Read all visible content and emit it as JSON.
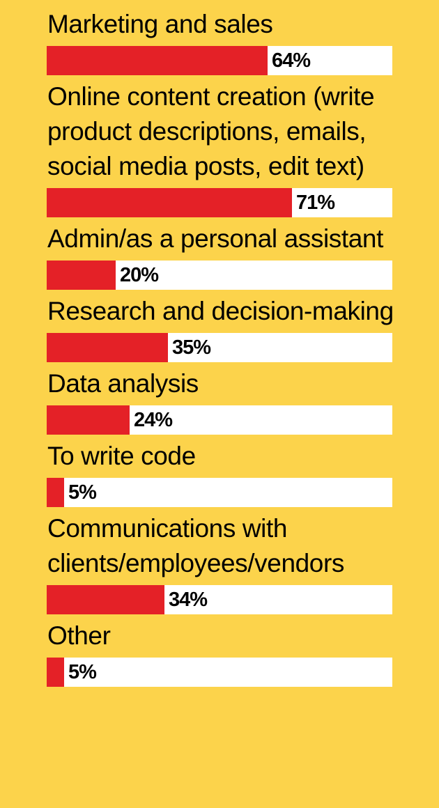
{
  "colors": {
    "background": "#FCD34B",
    "bar_fill": "#E42127",
    "bar_track": "#FFFFFF",
    "text": "#000000"
  },
  "chart_data": {
    "type": "bar",
    "orientation": "horizontal",
    "categories": [
      [
        "Marketing and sales"
      ],
      [
        "Online content creation (write",
        "product descriptions, emails,",
        "social media posts, edit text)"
      ],
      [
        "Admin/as a personal assistant"
      ],
      [
        "Research and decision-making"
      ],
      [
        "Data analysis"
      ],
      [
        "To write code"
      ],
      [
        "Communications with",
        "clients/employees/vendors"
      ],
      [
        "Other"
      ]
    ],
    "values": [
      64,
      71,
      20,
      35,
      24,
      5,
      34,
      5
    ],
    "value_labels": [
      "64%",
      "71%",
      "20%",
      "35%",
      "24%",
      "5%",
      "34%",
      "5%"
    ],
    "xlim": [
      0,
      100
    ],
    "unit": "%",
    "grid": false,
    "legend": "none"
  }
}
